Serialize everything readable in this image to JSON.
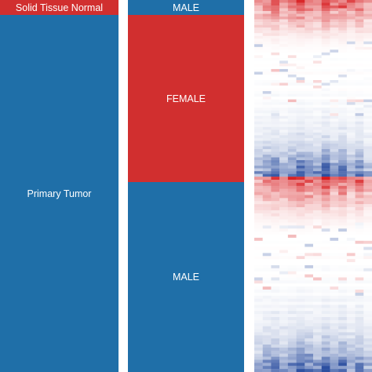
{
  "colors": {
    "red": "#d12f2f",
    "blue": "#1f6fa8",
    "hi": "#d7191c",
    "lo": "#2c4fa0",
    "mid": "#ffffff"
  },
  "chart_data": [
    {
      "type": "bar",
      "segments": [
        {
          "label": "Solid Tissue Normal",
          "fraction": 0.04,
          "color": "red"
        },
        {
          "label": "Primary Tumor",
          "fraction": 0.96,
          "color": "blue"
        }
      ]
    },
    {
      "type": "bar",
      "segments": [
        {
          "label": "MALE",
          "fraction": 0.04,
          "color": "blue"
        },
        {
          "label": "FEMALE",
          "fraction": 0.45,
          "color": "red"
        },
        {
          "label": "MALE",
          "fraction": 0.51,
          "color": "blue"
        }
      ]
    },
    {
      "type": "heatmap",
      "groups": [
        {
          "rows": 64,
          "fraction": 0.475
        },
        {
          "rows": 64,
          "fraction": 0.525
        }
      ],
      "columns": 14,
      "row_profile": [
        0.9,
        0.75,
        0.7,
        0.62,
        0.56,
        0.5,
        0.45,
        0.38,
        0.32,
        0.28,
        0.22,
        0.18,
        0.13,
        0.1,
        0.07,
        0.05,
        0.03,
        0.02,
        0.01,
        0,
        0,
        -0.01,
        0,
        0.01,
        0,
        -0.01,
        0.02,
        0,
        0,
        -0.02,
        -0.03,
        0,
        0.01,
        -0.02,
        -0.04,
        0,
        -0.03,
        -0.05,
        -0.02,
        -0.06,
        -0.08,
        -0.04,
        -0.1,
        -0.07,
        -0.12,
        -0.09,
        -0.14,
        -0.12,
        -0.16,
        -0.2,
        -0.18,
        -0.24,
        -0.28,
        -0.3,
        -0.35,
        -0.4,
        -0.45,
        -0.5,
        -0.58,
        -0.65,
        -0.72,
        -0.8,
        -0.88,
        -0.95
      ],
      "column_weights": [
        0.55,
        0.7,
        0.85,
        0.6,
        0.75,
        0.95,
        0.8,
        0.65,
        1,
        0.7,
        0.9,
        0.6,
        0.8,
        0.5
      ]
    }
  ]
}
